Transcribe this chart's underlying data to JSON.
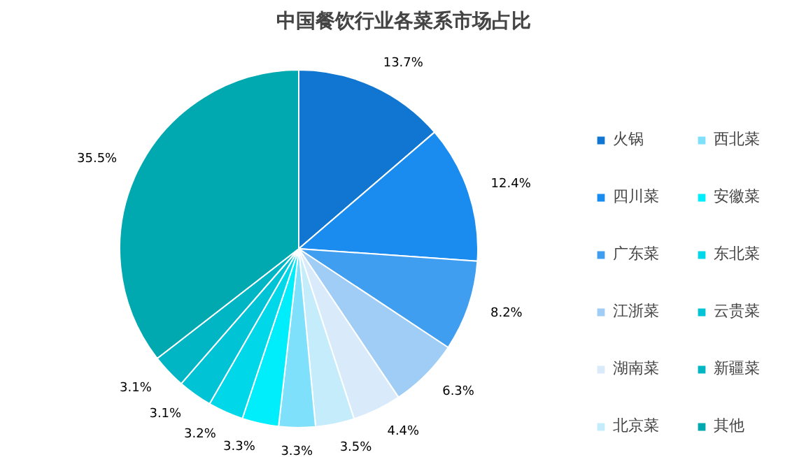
{
  "chart_data": {
    "type": "pie",
    "title": "中国餐饮行业各菜系市场占比",
    "categories": [
      "火锅",
      "四川菜",
      "广东菜",
      "江浙菜",
      "湖南菜",
      "北京菜",
      "西北菜",
      "安徽菜",
      "东北菜",
      "云贵菜",
      "新疆菜",
      "其他"
    ],
    "values": [
      13.7,
      12.4,
      8.2,
      6.3,
      4.4,
      3.5,
      3.3,
      3.3,
      3.2,
      3.1,
      3.1,
      35.5
    ],
    "value_labels": [
      "13.7%",
      "12.4%",
      "8.2%",
      "6.3%",
      "4.4%",
      "3.5%",
      "3.3%",
      "3.3%",
      "3.2%",
      "3.1%",
      "3.1%",
      "35.5%"
    ],
    "colors": [
      "#1176d1",
      "#1a8cf0",
      "#3f9ef0",
      "#9fcdf5",
      "#d9ebfb",
      "#c5ecfb",
      "#7fe0fb",
      "#00eefc",
      "#00d8ea",
      "#00c4d6",
      "#00b6c4",
      "#00a8b0"
    ],
    "legend": "right"
  }
}
